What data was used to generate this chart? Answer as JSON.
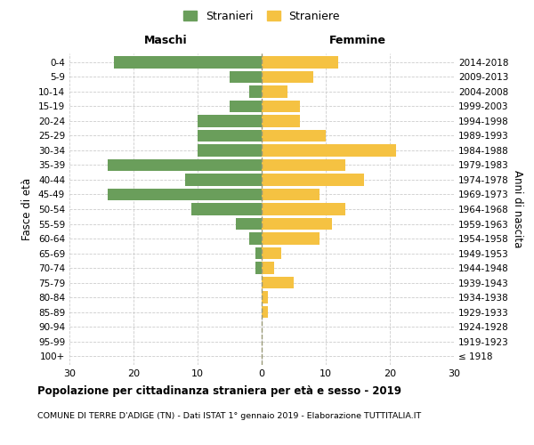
{
  "age_groups": [
    "100+",
    "95-99",
    "90-94",
    "85-89",
    "80-84",
    "75-79",
    "70-74",
    "65-69",
    "60-64",
    "55-59",
    "50-54",
    "45-49",
    "40-44",
    "35-39",
    "30-34",
    "25-29",
    "20-24",
    "15-19",
    "10-14",
    "5-9",
    "0-4"
  ],
  "birth_years": [
    "≤ 1918",
    "1919-1923",
    "1924-1928",
    "1929-1933",
    "1934-1938",
    "1939-1943",
    "1944-1948",
    "1949-1953",
    "1954-1958",
    "1959-1963",
    "1964-1968",
    "1969-1973",
    "1974-1978",
    "1979-1983",
    "1984-1988",
    "1989-1993",
    "1994-1998",
    "1999-2003",
    "2004-2008",
    "2009-2013",
    "2014-2018"
  ],
  "males": [
    0,
    0,
    0,
    0,
    0,
    0,
    1,
    1,
    2,
    4,
    11,
    24,
    12,
    24,
    10,
    10,
    10,
    5,
    2,
    5,
    23
  ],
  "females": [
    0,
    0,
    0,
    1,
    1,
    5,
    2,
    3,
    9,
    11,
    13,
    9,
    16,
    13,
    21,
    10,
    6,
    6,
    4,
    8,
    12
  ],
  "male_color": "#6a9e5b",
  "female_color": "#f5c242",
  "background_color": "#ffffff",
  "grid_color": "#cccccc",
  "center_line_color": "#999977",
  "title_main": "Popolazione per cittadinanza straniera per età e sesso - 2019",
  "title_sub": "COMUNE DI TERRE D'ADIGE (TN) - Dati ISTAT 1° gennaio 2019 - Elaborazione TUTTITALIA.IT",
  "legend_male": "Stranieri",
  "legend_female": "Straniere",
  "xlabel_left": "Maschi",
  "xlabel_right": "Femmine",
  "ylabel": "Fasce di età",
  "ylabel_right": "Anni di nascita",
  "xlim": 30,
  "bar_height": 0.8
}
